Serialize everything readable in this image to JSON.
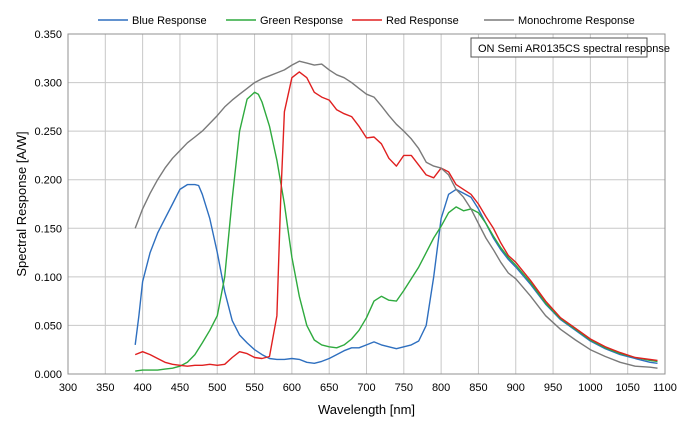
{
  "chart_data": {
    "type": "line",
    "xlabel": "Wavelength [nm]",
    "ylabel": "Spectral Response [A/W]",
    "xlim": [
      300,
      1100
    ],
    "ylim": [
      0,
      0.35
    ],
    "xticks": [
      300,
      350,
      400,
      450,
      500,
      550,
      600,
      650,
      700,
      750,
      800,
      850,
      900,
      950,
      1000,
      1050,
      1100
    ],
    "yticks": [
      0,
      0.05,
      0.1,
      0.15,
      0.2,
      0.25,
      0.3,
      0.35
    ],
    "xtick_labels": [
      "300",
      "350",
      "400",
      "450",
      "500",
      "550",
      "600",
      "650",
      "700",
      "750",
      "800",
      "850",
      "900",
      "950",
      "1000",
      "1050",
      "1100"
    ],
    "ytick_labels": [
      "0.000",
      "0.050",
      "0.100",
      "0.150",
      "0.200",
      "0.250",
      "0.300",
      "0.350"
    ],
    "grid": true,
    "legend_position": "top",
    "annotation": "ON Semi AR0135CS spectral response",
    "series": [
      {
        "name": "Blue Response",
        "color": "#2e6fbf",
        "points": [
          [
            390,
            0.03
          ],
          [
            395,
            0.06
          ],
          [
            400,
            0.095
          ],
          [
            410,
            0.125
          ],
          [
            420,
            0.145
          ],
          [
            430,
            0.16
          ],
          [
            440,
            0.175
          ],
          [
            450,
            0.19
          ],
          [
            460,
            0.195
          ],
          [
            470,
            0.195
          ],
          [
            475,
            0.194
          ],
          [
            480,
            0.185
          ],
          [
            490,
            0.16
          ],
          [
            500,
            0.125
          ],
          [
            510,
            0.085
          ],
          [
            520,
            0.055
          ],
          [
            530,
            0.04
          ],
          [
            540,
            0.032
          ],
          [
            550,
            0.025
          ],
          [
            560,
            0.02
          ],
          [
            570,
            0.016
          ],
          [
            580,
            0.015
          ],
          [
            590,
            0.015
          ],
          [
            600,
            0.016
          ],
          [
            610,
            0.015
          ],
          [
            620,
            0.012
          ],
          [
            630,
            0.011
          ],
          [
            640,
            0.013
          ],
          [
            650,
            0.016
          ],
          [
            660,
            0.02
          ],
          [
            670,
            0.024
          ],
          [
            680,
            0.027
          ],
          [
            690,
            0.027
          ],
          [
            700,
            0.03
          ],
          [
            710,
            0.033
          ],
          [
            720,
            0.03
          ],
          [
            730,
            0.028
          ],
          [
            740,
            0.026
          ],
          [
            750,
            0.028
          ],
          [
            760,
            0.03
          ],
          [
            770,
            0.034
          ],
          [
            780,
            0.05
          ],
          [
            790,
            0.1
          ],
          [
            800,
            0.16
          ],
          [
            810,
            0.185
          ],
          [
            820,
            0.19
          ],
          [
            830,
            0.186
          ],
          [
            840,
            0.182
          ],
          [
            850,
            0.17
          ],
          [
            860,
            0.155
          ],
          [
            870,
            0.14
          ],
          [
            880,
            0.128
          ],
          [
            890,
            0.118
          ],
          [
            900,
            0.11
          ],
          [
            920,
            0.092
          ],
          [
            940,
            0.072
          ],
          [
            960,
            0.056
          ],
          [
            980,
            0.045
          ],
          [
            1000,
            0.034
          ],
          [
            1020,
            0.026
          ],
          [
            1040,
            0.02
          ],
          [
            1060,
            0.016
          ],
          [
            1080,
            0.012
          ],
          [
            1090,
            0.011
          ]
        ]
      },
      {
        "name": "Green Response",
        "color": "#2eaa3e",
        "points": [
          [
            390,
            0.003
          ],
          [
            400,
            0.004
          ],
          [
            410,
            0.004
          ],
          [
            420,
            0.004
          ],
          [
            430,
            0.005
          ],
          [
            440,
            0.006
          ],
          [
            450,
            0.008
          ],
          [
            460,
            0.012
          ],
          [
            470,
            0.02
          ],
          [
            480,
            0.032
          ],
          [
            490,
            0.045
          ],
          [
            500,
            0.06
          ],
          [
            510,
            0.1
          ],
          [
            520,
            0.18
          ],
          [
            530,
            0.25
          ],
          [
            540,
            0.283
          ],
          [
            550,
            0.29
          ],
          [
            555,
            0.288
          ],
          [
            560,
            0.28
          ],
          [
            570,
            0.255
          ],
          [
            580,
            0.22
          ],
          [
            590,
            0.175
          ],
          [
            600,
            0.12
          ],
          [
            610,
            0.08
          ],
          [
            620,
            0.05
          ],
          [
            630,
            0.035
          ],
          [
            640,
            0.03
          ],
          [
            650,
            0.028
          ],
          [
            660,
            0.027
          ],
          [
            670,
            0.03
          ],
          [
            680,
            0.036
          ],
          [
            690,
            0.045
          ],
          [
            700,
            0.058
          ],
          [
            710,
            0.075
          ],
          [
            720,
            0.08
          ],
          [
            730,
            0.076
          ],
          [
            740,
            0.075
          ],
          [
            750,
            0.086
          ],
          [
            760,
            0.098
          ],
          [
            770,
            0.11
          ],
          [
            780,
            0.125
          ],
          [
            790,
            0.14
          ],
          [
            800,
            0.152
          ],
          [
            810,
            0.166
          ],
          [
            820,
            0.172
          ],
          [
            830,
            0.168
          ],
          [
            840,
            0.17
          ],
          [
            850,
            0.166
          ],
          [
            860,
            0.155
          ],
          [
            870,
            0.142
          ],
          [
            880,
            0.13
          ],
          [
            890,
            0.12
          ],
          [
            900,
            0.112
          ],
          [
            920,
            0.094
          ],
          [
            940,
            0.073
          ],
          [
            960,
            0.057
          ],
          [
            980,
            0.046
          ],
          [
            1000,
            0.035
          ],
          [
            1020,
            0.027
          ],
          [
            1040,
            0.021
          ],
          [
            1060,
            0.017
          ],
          [
            1080,
            0.014
          ],
          [
            1090,
            0.013
          ]
        ]
      },
      {
        "name": "Red Response",
        "color": "#e02020",
        "points": [
          [
            390,
            0.02
          ],
          [
            400,
            0.023
          ],
          [
            410,
            0.02
          ],
          [
            420,
            0.016
          ],
          [
            430,
            0.012
          ],
          [
            440,
            0.01
          ],
          [
            450,
            0.009
          ],
          [
            460,
            0.008
          ],
          [
            470,
            0.009
          ],
          [
            480,
            0.009
          ],
          [
            490,
            0.01
          ],
          [
            500,
            0.009
          ],
          [
            510,
            0.01
          ],
          [
            520,
            0.017
          ],
          [
            530,
            0.023
          ],
          [
            540,
            0.021
          ],
          [
            550,
            0.017
          ],
          [
            560,
            0.016
          ],
          [
            570,
            0.018
          ],
          [
            580,
            0.06
          ],
          [
            585,
            0.18
          ],
          [
            590,
            0.27
          ],
          [
            600,
            0.305
          ],
          [
            610,
            0.311
          ],
          [
            620,
            0.305
          ],
          [
            630,
            0.29
          ],
          [
            640,
            0.285
          ],
          [
            650,
            0.282
          ],
          [
            660,
            0.272
          ],
          [
            670,
            0.268
          ],
          [
            680,
            0.265
          ],
          [
            690,
            0.255
          ],
          [
            700,
            0.243
          ],
          [
            710,
            0.244
          ],
          [
            720,
            0.237
          ],
          [
            730,
            0.222
          ],
          [
            740,
            0.214
          ],
          [
            750,
            0.225
          ],
          [
            760,
            0.225
          ],
          [
            770,
            0.215
          ],
          [
            780,
            0.205
          ],
          [
            790,
            0.202
          ],
          [
            800,
            0.212
          ],
          [
            810,
            0.208
          ],
          [
            820,
            0.195
          ],
          [
            830,
            0.19
          ],
          [
            840,
            0.185
          ],
          [
            850,
            0.175
          ],
          [
            860,
            0.162
          ],
          [
            870,
            0.15
          ],
          [
            880,
            0.135
          ],
          [
            890,
            0.122
          ],
          [
            900,
            0.115
          ],
          [
            920,
            0.096
          ],
          [
            940,
            0.075
          ],
          [
            960,
            0.058
          ],
          [
            980,
            0.047
          ],
          [
            1000,
            0.036
          ],
          [
            1020,
            0.028
          ],
          [
            1040,
            0.022
          ],
          [
            1060,
            0.017
          ],
          [
            1080,
            0.015
          ],
          [
            1090,
            0.014
          ]
        ]
      },
      {
        "name": "Monochrome Response",
        "color": "#7a7a7a",
        "points": [
          [
            390,
            0.15
          ],
          [
            400,
            0.17
          ],
          [
            410,
            0.186
          ],
          [
            420,
            0.2
          ],
          [
            430,
            0.212
          ],
          [
            440,
            0.222
          ],
          [
            450,
            0.23
          ],
          [
            460,
            0.238
          ],
          [
            470,
            0.244
          ],
          [
            480,
            0.25
          ],
          [
            490,
            0.258
          ],
          [
            500,
            0.266
          ],
          [
            510,
            0.275
          ],
          [
            520,
            0.282
          ],
          [
            530,
            0.288
          ],
          [
            540,
            0.294
          ],
          [
            550,
            0.3
          ],
          [
            560,
            0.304
          ],
          [
            570,
            0.307
          ],
          [
            580,
            0.31
          ],
          [
            590,
            0.313
          ],
          [
            600,
            0.318
          ],
          [
            610,
            0.322
          ],
          [
            620,
            0.32
          ],
          [
            630,
            0.318
          ],
          [
            640,
            0.319
          ],
          [
            650,
            0.313
          ],
          [
            660,
            0.308
          ],
          [
            670,
            0.305
          ],
          [
            680,
            0.3
          ],
          [
            690,
            0.294
          ],
          [
            700,
            0.288
          ],
          [
            710,
            0.285
          ],
          [
            720,
            0.276
          ],
          [
            730,
            0.266
          ],
          [
            740,
            0.257
          ],
          [
            750,
            0.25
          ],
          [
            760,
            0.242
          ],
          [
            770,
            0.232
          ],
          [
            780,
            0.218
          ],
          [
            790,
            0.214
          ],
          [
            800,
            0.212
          ],
          [
            810,
            0.205
          ],
          [
            820,
            0.19
          ],
          [
            830,
            0.182
          ],
          [
            840,
            0.17
          ],
          [
            850,
            0.155
          ],
          [
            860,
            0.14
          ],
          [
            870,
            0.128
          ],
          [
            880,
            0.115
          ],
          [
            890,
            0.104
          ],
          [
            900,
            0.098
          ],
          [
            920,
            0.08
          ],
          [
            940,
            0.06
          ],
          [
            960,
            0.046
          ],
          [
            980,
            0.035
          ],
          [
            1000,
            0.025
          ],
          [
            1020,
            0.018
          ],
          [
            1040,
            0.012
          ],
          [
            1060,
            0.008
          ],
          [
            1080,
            0.007
          ],
          [
            1090,
            0.006
          ]
        ]
      }
    ]
  }
}
